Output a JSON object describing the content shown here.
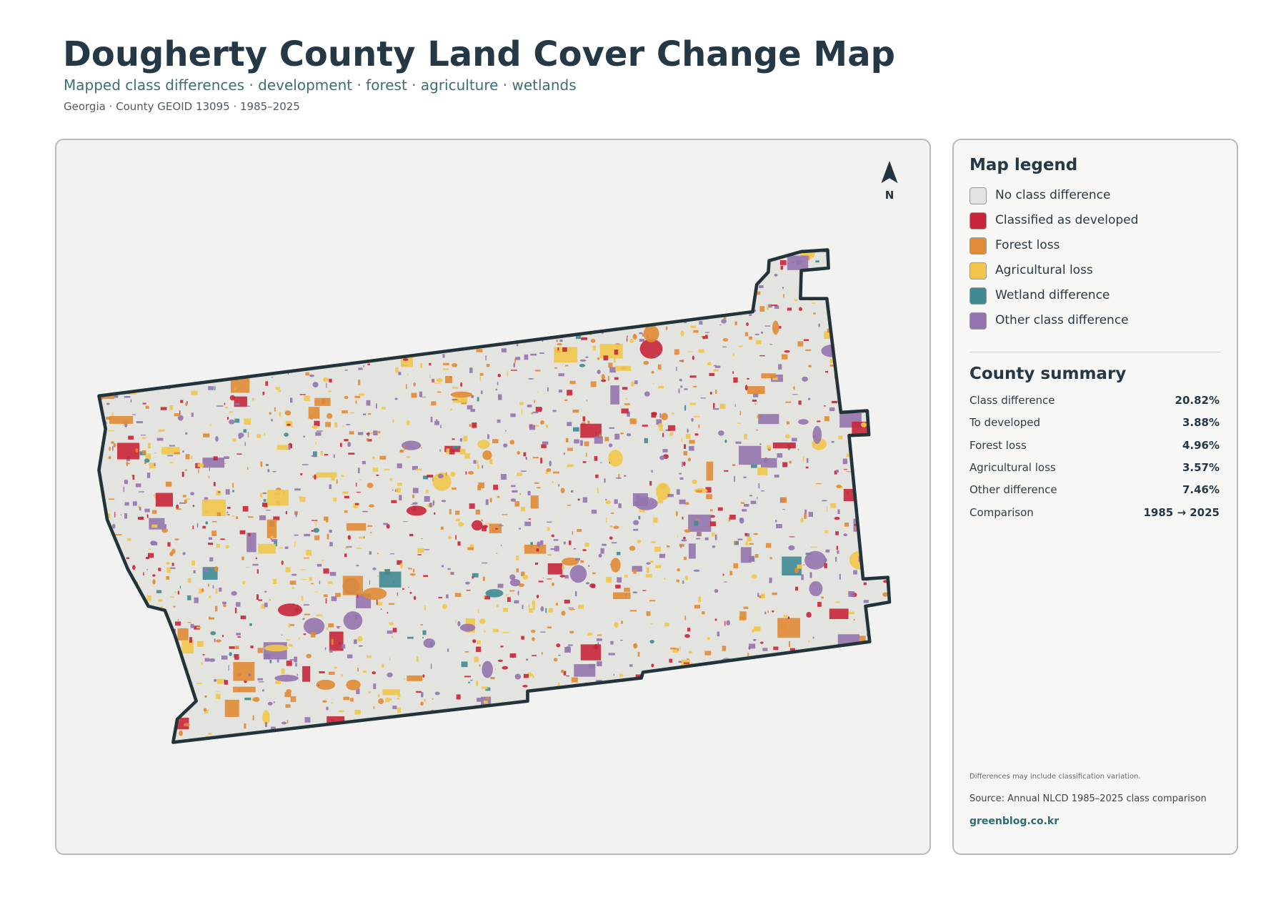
{
  "header": {
    "title": "Dougherty County Land Cover Change Map",
    "subtitle": "Mapped class differences · development · forest · agriculture · wetlands",
    "meta": "Georgia · County GEOID 13095 · 1985–2025"
  },
  "map": {
    "north": "N"
  },
  "legend": {
    "title": "Map legend",
    "items": [
      {
        "label": "No class difference",
        "color": "#e3e3e0"
      },
      {
        "label": "Classified as developed",
        "color": "#c8253a"
      },
      {
        "label": "Forest loss",
        "color": "#e08b35"
      },
      {
        "label": "Agricultural loss",
        "color": "#f1c64a"
      },
      {
        "label": "Wetland difference",
        "color": "#3f8a93"
      },
      {
        "label": "Other class difference",
        "color": "#9474ae"
      }
    ]
  },
  "summary": {
    "title": "County summary",
    "rows": [
      [
        "Class difference",
        "20.82%"
      ],
      [
        "To developed",
        "3.88%"
      ],
      [
        "Forest loss",
        "4.96%"
      ],
      [
        "Agricultural loss",
        "3.57%"
      ],
      [
        "Other difference",
        "7.46%"
      ],
      [
        "Comparison",
        "1985 → 2025"
      ]
    ]
  },
  "footer": {
    "note": "Differences may include classification variation.",
    "source": "Source: Annual NLCD 1985–2025 class comparison",
    "site": "greenblog.co.kr"
  }
}
